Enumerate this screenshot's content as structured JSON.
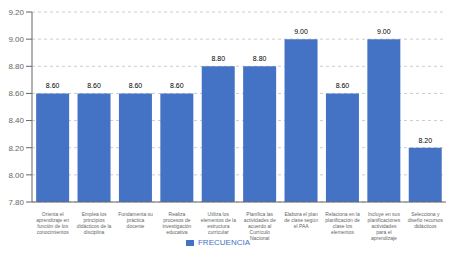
{
  "chart_data": {
    "type": "bar",
    "categories": [
      "Orienta el\naprendizaje en\nfunción de los\nconocimientos",
      "Emplea los\nprincipios\ndidácticos de la\ndisciplina",
      "Fundamenta su\npráctica\ndocente",
      "Realiza\nprocesos de\ninvestigación\neducativa",
      "Utiliza los\nelementos de la\nestructura\ncurricular",
      "Planifica las\nactividades de\nacuerdo al\nCurrículo\nNacional",
      "Elabora el plan\nde clase según\nel PAA",
      "Relaciona en la\nplanificación de\nclase los\nelementos",
      "Incluye en sus\nplanificaciones\nactividades\npara el\naprendizaje",
      "Selecciona y\ndiseño recursos\ndidácticos"
    ],
    "series": [
      {
        "name": "FRECUENCIA",
        "color": "#4472C4",
        "values": [
          8.6,
          8.6,
          8.6,
          8.6,
          8.8,
          8.8,
          9.0,
          8.6,
          9.0,
          8.2
        ],
        "value_labels": [
          "8.60",
          "8.60",
          "8.60",
          "8.60",
          "8.80",
          "8.80",
          "9.00",
          "8.60",
          "9.00",
          "8.20"
        ]
      }
    ],
    "ylim": [
      7.8,
      9.2
    ],
    "yticks": [
      {
        "value": 7.8,
        "label": "7.80"
      },
      {
        "value": 8.0,
        "label": "8.00"
      },
      {
        "value": 8.2,
        "label": "8.20"
      },
      {
        "value": 8.4,
        "label": "8.40"
      },
      {
        "value": 8.6,
        "label": "8.60"
      },
      {
        "value": 8.8,
        "label": "8.80"
      },
      {
        "value": 9.0,
        "label": "9.00"
      },
      {
        "value": 9.2,
        "label": "9.20"
      }
    ],
    "grid": true,
    "legend": "bottom",
    "data_labels": true
  }
}
